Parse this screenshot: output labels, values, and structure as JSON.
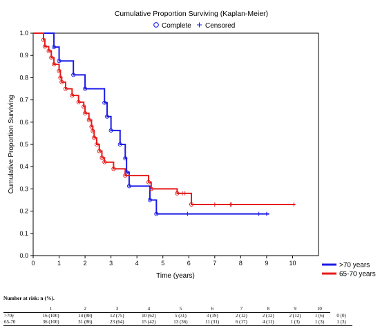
{
  "chart_data": {
    "type": "line",
    "title": "Cumulative Proportion Surviving (Kaplan-Meier)",
    "xlabel": "Time (years)",
    "ylabel": "Cumulative Proportion Surviving",
    "xlim": [
      0,
      11
    ],
    "ylim": [
      0,
      1
    ],
    "x_ticks": [
      "0",
      "1",
      "2",
      "3",
      "4",
      "5",
      "6",
      "7",
      "8",
      "9",
      "10"
    ],
    "y_ticks": [
      "0.0",
      "0.1",
      "0.2",
      "0.3",
      "0.4",
      "0.5",
      "0.6",
      "0.7",
      "0.8",
      "0.9",
      "1.0"
    ],
    "grid": false,
    "marker_legend": {
      "complete": "Complete",
      "censored": "Censored"
    },
    "legend_position": "bottom-right",
    "series": [
      {
        "name": ">70 years",
        "color": "#1a1ae6",
        "step_points": [
          [
            0,
            1.0
          ],
          [
            0.8,
            1.0
          ],
          [
            0.8,
            0.9375
          ],
          [
            1.0,
            0.9375
          ],
          [
            1.0,
            0.875
          ],
          [
            1.55,
            0.875
          ],
          [
            1.55,
            0.8125
          ],
          [
            2.0,
            0.8125
          ],
          [
            2.0,
            0.75
          ],
          [
            2.75,
            0.75
          ],
          [
            2.75,
            0.6875
          ],
          [
            2.85,
            0.6875
          ],
          [
            2.85,
            0.625
          ],
          [
            3.0,
            0.625
          ],
          [
            3.0,
            0.5625
          ],
          [
            3.35,
            0.5625
          ],
          [
            3.35,
            0.5
          ],
          [
            3.55,
            0.5
          ],
          [
            3.55,
            0.4375
          ],
          [
            3.6,
            0.4375
          ],
          [
            3.6,
            0.375
          ],
          [
            3.7,
            0.375
          ],
          [
            3.7,
            0.3125
          ],
          [
            4.5,
            0.3125
          ],
          [
            4.5,
            0.25
          ],
          [
            4.75,
            0.25
          ],
          [
            4.75,
            0.1875
          ],
          [
            9.1,
            0.1875
          ]
        ],
        "complete_events": [
          [
            0.8,
            0.9375
          ],
          [
            1.0,
            0.875
          ],
          [
            1.55,
            0.8125
          ],
          [
            2.0,
            0.75
          ],
          [
            2.75,
            0.6875
          ],
          [
            2.85,
            0.625
          ],
          [
            3.0,
            0.5625
          ],
          [
            3.35,
            0.5
          ],
          [
            3.55,
            0.4375
          ],
          [
            3.6,
            0.375
          ],
          [
            3.7,
            0.3125
          ],
          [
            4.5,
            0.25
          ],
          [
            4.75,
            0.1875
          ]
        ],
        "censored": [
          [
            5.95,
            0.1875
          ],
          [
            8.7,
            0.1875
          ],
          [
            9.0,
            0.1875
          ]
        ]
      },
      {
        "name": "65-70 years",
        "color": "#e61a1a",
        "step_points": [
          [
            0,
            1.0
          ],
          [
            0.4,
            1.0
          ],
          [
            0.4,
            0.97
          ],
          [
            0.45,
            0.97
          ],
          [
            0.45,
            0.94
          ],
          [
            0.6,
            0.94
          ],
          [
            0.6,
            0.92
          ],
          [
            0.7,
            0.92
          ],
          [
            0.7,
            0.89
          ],
          [
            0.8,
            0.89
          ],
          [
            0.8,
            0.86
          ],
          [
            1.0,
            0.86
          ],
          [
            1.0,
            0.83
          ],
          [
            1.05,
            0.83
          ],
          [
            1.05,
            0.8
          ],
          [
            1.1,
            0.8
          ],
          [
            1.1,
            0.78
          ],
          [
            1.25,
            0.78
          ],
          [
            1.25,
            0.75
          ],
          [
            1.5,
            0.75
          ],
          [
            1.5,
            0.72
          ],
          [
            1.75,
            0.72
          ],
          [
            1.75,
            0.69
          ],
          [
            1.95,
            0.69
          ],
          [
            1.95,
            0.67
          ],
          [
            2.0,
            0.67
          ],
          [
            2.0,
            0.64
          ],
          [
            2.15,
            0.64
          ],
          [
            2.15,
            0.61
          ],
          [
            2.25,
            0.61
          ],
          [
            2.25,
            0.58
          ],
          [
            2.3,
            0.58
          ],
          [
            2.3,
            0.56
          ],
          [
            2.35,
            0.56
          ],
          [
            2.35,
            0.53
          ],
          [
            2.45,
            0.53
          ],
          [
            2.45,
            0.5
          ],
          [
            2.55,
            0.5
          ],
          [
            2.55,
            0.47
          ],
          [
            2.65,
            0.47
          ],
          [
            2.65,
            0.44
          ],
          [
            2.75,
            0.44
          ],
          [
            2.75,
            0.42
          ],
          [
            3.1,
            0.42
          ],
          [
            3.1,
            0.39
          ],
          [
            3.55,
            0.39
          ],
          [
            3.55,
            0.36
          ],
          [
            4.45,
            0.36
          ],
          [
            4.45,
            0.33
          ],
          [
            4.55,
            0.33
          ],
          [
            4.55,
            0.3
          ],
          [
            5.55,
            0.3
          ],
          [
            5.55,
            0.28
          ],
          [
            6.1,
            0.28
          ],
          [
            6.1,
            0.23
          ],
          [
            10.1,
            0.23
          ]
        ],
        "complete_events": [
          [
            0.4,
            0.97
          ],
          [
            0.45,
            0.94
          ],
          [
            0.6,
            0.92
          ],
          [
            0.7,
            0.89
          ],
          [
            0.8,
            0.86
          ],
          [
            1.0,
            0.83
          ],
          [
            1.05,
            0.8
          ],
          [
            1.1,
            0.78
          ],
          [
            1.25,
            0.75
          ],
          [
            1.5,
            0.72
          ],
          [
            1.75,
            0.69
          ],
          [
            1.95,
            0.67
          ],
          [
            2.0,
            0.64
          ],
          [
            2.15,
            0.61
          ],
          [
            2.25,
            0.58
          ],
          [
            2.3,
            0.56
          ],
          [
            2.35,
            0.53
          ],
          [
            2.45,
            0.5
          ],
          [
            2.55,
            0.47
          ],
          [
            2.65,
            0.44
          ],
          [
            2.75,
            0.42
          ],
          [
            3.1,
            0.39
          ],
          [
            3.55,
            0.36
          ],
          [
            4.45,
            0.33
          ],
          [
            4.55,
            0.3
          ],
          [
            5.55,
            0.28
          ],
          [
            6.1,
            0.23
          ]
        ],
        "censored": [
          [
            5.75,
            0.28
          ],
          [
            5.85,
            0.28
          ],
          [
            7.0,
            0.23
          ],
          [
            7.6,
            0.23
          ],
          [
            7.65,
            0.23
          ],
          [
            10.05,
            0.23
          ]
        ]
      }
    ]
  },
  "risk_table": {
    "caption": "Number at risk: n (%).",
    "headers": [
      "",
      "1",
      "2",
      "3",
      "4",
      "5",
      "6",
      "7",
      "8",
      "9",
      "10"
    ],
    "rows": [
      {
        "label": ">70y",
        "cells": [
          "16 (100)",
          "14 (88)",
          "12 (75)",
          "10 (62)",
          "5 (31)",
          "3 (19)",
          "2 (12)",
          "2 (12)",
          "2 (12)",
          "1 (6)",
          "0 (0)"
        ]
      },
      {
        "label": "65-70",
        "cells": [
          "36 (100)",
          "31 (86)",
          "23 (64)",
          "15 (42)",
          "13 (36)",
          "11 (31)",
          "6 (17)",
          "4 (11)",
          "1 (3)",
          "1 (3)",
          "1 (3)"
        ]
      }
    ]
  }
}
